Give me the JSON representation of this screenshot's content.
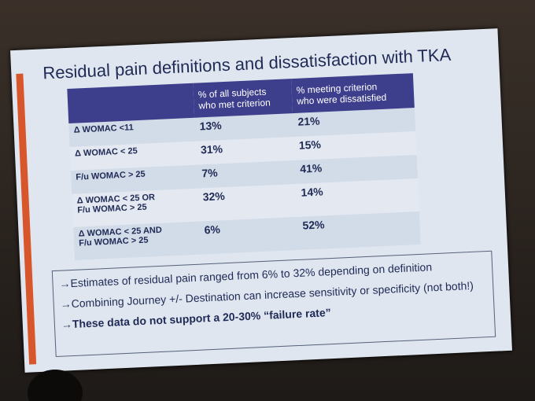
{
  "title": "Residual pain definitions and dissatisfaction with TKA",
  "table": {
    "header": [
      [
        "% of all subjects",
        "who met  criterion"
      ],
      [
        "% meeting  criterion",
        "who were dissatisfied"
      ]
    ],
    "rows": [
      {
        "label": [
          "Δ WOMAC  <11"
        ],
        "all": "13%",
        "dissatisfied": "21%"
      },
      {
        "label": [
          "Δ WOMAC  < 25"
        ],
        "all": "31%",
        "dissatisfied": "15%"
      },
      {
        "label": [
          "F/u WOMAC > 25"
        ],
        "all": "7%",
        "dissatisfied": "41%"
      },
      {
        "label": [
          "Δ WOMAC < 25 OR",
          "F/u WOMAC > 25"
        ],
        "all": "32%",
        "dissatisfied": "14%"
      },
      {
        "label": [
          "Δ WOMAC < 25 AND",
          "F/u WOMAC > 25"
        ],
        "all": "6%",
        "dissatisfied": "52%"
      }
    ]
  },
  "bullets": [
    "→Estimates of residual pain ranged from 6% to 32% depending on definition",
    "→Combining Journey +/- Destination can increase sensitivity or specificity (not both!)",
    "→These data do not support a 20-30% “failure rate”"
  ]
}
